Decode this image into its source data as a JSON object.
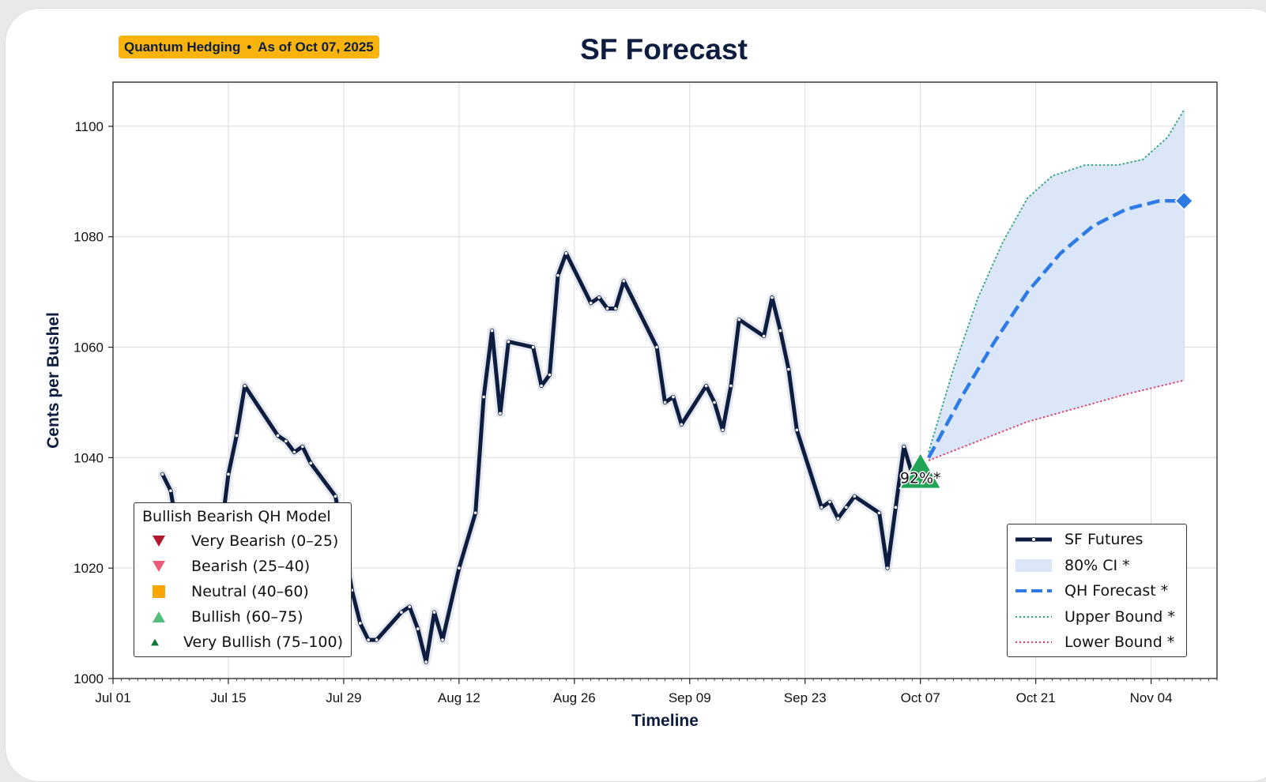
{
  "badge": {
    "source": "Quantum Hedging",
    "separator": "•",
    "asof": "As of Oct 07, 2025"
  },
  "chart_data": {
    "type": "line",
    "title": "SF Forecast",
    "xlabel": "Timeline",
    "ylabel": "Cents per Bushel",
    "ylim": [
      1000,
      1108
    ],
    "xlim": [
      "2025-07-01",
      "2025-11-12"
    ],
    "x_tick_labels": [
      "Jul 01",
      "Jul 15",
      "Jul 29",
      "Aug 12",
      "Aug 26",
      "Sep 09",
      "Sep 23",
      "Oct 07",
      "Oct 21",
      "Nov 04"
    ],
    "x_ticks": [
      "2025-07-01",
      "2025-07-15",
      "2025-07-29",
      "2025-08-12",
      "2025-08-26",
      "2025-09-09",
      "2025-09-23",
      "2025-10-07",
      "2025-10-21",
      "2025-11-04"
    ],
    "y_ticks": [
      1000,
      1020,
      1040,
      1060,
      1080,
      1100
    ],
    "grid": true,
    "colors": {
      "futures": "#0d1d3f",
      "forecast": "#2f7be6",
      "ci_fill": "#dbe6f8",
      "upper": "#2aa66a",
      "lower": "#e23a62",
      "signal": "#22a456"
    },
    "series": [
      {
        "name": "SF Futures",
        "points": [
          [
            "2025-07-07",
            1037
          ],
          [
            "2025-07-08",
            1034
          ],
          [
            "2025-07-09",
            1025
          ],
          [
            "2025-07-10",
            1030
          ],
          [
            "2025-07-11",
            1027
          ],
          [
            "2025-07-14",
            1025
          ],
          [
            "2025-07-15",
            1037
          ],
          [
            "2025-07-16",
            1044
          ],
          [
            "2025-07-17",
            1053
          ],
          [
            "2025-07-21",
            1044
          ],
          [
            "2025-07-22",
            1043
          ],
          [
            "2025-07-23",
            1041
          ],
          [
            "2025-07-24",
            1042
          ],
          [
            "2025-07-25",
            1039
          ],
          [
            "2025-07-28",
            1033
          ],
          [
            "2025-07-29",
            1025
          ],
          [
            "2025-07-30",
            1016
          ],
          [
            "2025-07-31",
            1010
          ],
          [
            "2025-08-01",
            1007
          ],
          [
            "2025-08-02",
            1007
          ],
          [
            "2025-08-05",
            1012
          ],
          [
            "2025-08-06",
            1013
          ],
          [
            "2025-08-07",
            1009
          ],
          [
            "2025-08-08",
            1003
          ],
          [
            "2025-08-09",
            1012
          ],
          [
            "2025-08-10",
            1007
          ],
          [
            "2025-08-12",
            1020
          ],
          [
            "2025-08-14",
            1030
          ],
          [
            "2025-08-15",
            1051
          ],
          [
            "2025-08-16",
            1063
          ],
          [
            "2025-08-17",
            1048
          ],
          [
            "2025-08-18",
            1061
          ],
          [
            "2025-08-21",
            1060
          ],
          [
            "2025-08-22",
            1053
          ],
          [
            "2025-08-23",
            1055
          ],
          [
            "2025-08-24",
            1073
          ],
          [
            "2025-08-25",
            1077
          ],
          [
            "2025-08-28",
            1068
          ],
          [
            "2025-08-29",
            1069
          ],
          [
            "2025-08-30",
            1067
          ],
          [
            "2025-08-31",
            1067
          ],
          [
            "2025-09-01",
            1072
          ],
          [
            "2025-09-05",
            1060
          ],
          [
            "2025-09-06",
            1050
          ],
          [
            "2025-09-07",
            1051
          ],
          [
            "2025-09-08",
            1046
          ],
          [
            "2025-09-11",
            1053
          ],
          [
            "2025-09-12",
            1050
          ],
          [
            "2025-09-13",
            1045
          ],
          [
            "2025-09-14",
            1053
          ],
          [
            "2025-09-15",
            1065
          ],
          [
            "2025-09-18",
            1062
          ],
          [
            "2025-09-19",
            1069
          ],
          [
            "2025-09-20",
            1063
          ],
          [
            "2025-09-21",
            1056
          ],
          [
            "2025-09-22",
            1045
          ],
          [
            "2025-09-25",
            1031
          ],
          [
            "2025-09-26",
            1032
          ],
          [
            "2025-09-27",
            1029
          ],
          [
            "2025-09-28",
            1031
          ],
          [
            "2025-09-29",
            1033
          ],
          [
            "2025-10-02",
            1030
          ],
          [
            "2025-10-03",
            1020
          ],
          [
            "2025-10-04",
            1031
          ],
          [
            "2025-10-05",
            1042
          ],
          [
            "2025-10-06",
            1037
          ],
          [
            "2025-10-07",
            1036
          ]
        ]
      },
      {
        "name": "QH Forecast *",
        "points": [
          [
            "2025-10-08",
            1040
          ],
          [
            "2025-10-12",
            1051
          ],
          [
            "2025-10-16",
            1061
          ],
          [
            "2025-10-20",
            1070
          ],
          [
            "2025-10-24",
            1077
          ],
          [
            "2025-10-28",
            1082
          ],
          [
            "2025-11-01",
            1085
          ],
          [
            "2025-11-05",
            1086.5
          ],
          [
            "2025-11-08",
            1086.5
          ]
        ]
      },
      {
        "name": "Upper Bound *",
        "points": [
          [
            "2025-10-08",
            1041
          ],
          [
            "2025-10-11",
            1056
          ],
          [
            "2025-10-14",
            1069
          ],
          [
            "2025-10-17",
            1079
          ],
          [
            "2025-10-20",
            1087
          ],
          [
            "2025-10-23",
            1091
          ],
          [
            "2025-10-27",
            1093
          ],
          [
            "2025-10-31",
            1093
          ],
          [
            "2025-11-03",
            1094
          ],
          [
            "2025-11-06",
            1098
          ],
          [
            "2025-11-08",
            1103
          ]
        ]
      },
      {
        "name": "Lower Bound *",
        "points": [
          [
            "2025-10-08",
            1039.5
          ],
          [
            "2025-10-14",
            1043
          ],
          [
            "2025-10-20",
            1046.5
          ],
          [
            "2025-10-26",
            1049
          ],
          [
            "2025-11-01",
            1051.5
          ],
          [
            "2025-11-08",
            1054
          ]
        ]
      }
    ],
    "ci_band": {
      "name": "80% CI *",
      "level": 80
    },
    "forecast_end_marker": {
      "date": "2025-11-08",
      "value": 1086.5
    },
    "signal": {
      "date": "2025-10-07",
      "value": 1038,
      "label": "92%*",
      "category": "Very Bullish (75–100)"
    },
    "legend_model": {
      "title": "Bullish Bearish QH Model",
      "placement": "lower-left",
      "entries": [
        {
          "label": "Very Bearish (0–25)",
          "marker": "triangle-down",
          "color": "#b01a2e"
        },
        {
          "label": "Bearish (25–40)",
          "marker": "triangle-down",
          "color": "#ee5b7a"
        },
        {
          "label": "Neutral (40–60)",
          "marker": "square",
          "color": "#ffa500"
        },
        {
          "label": "Bullish (60–75)",
          "marker": "triangle-up",
          "color": "#52c07a"
        },
        {
          "label": "Very Bullish (75–100)",
          "marker": "triangle-up",
          "color": "#0d7a3a"
        }
      ]
    },
    "legend_series": {
      "placement": "lower-right",
      "entries": [
        {
          "label": "SF Futures",
          "style": "solid-marker"
        },
        {
          "label": "80% CI *",
          "style": "fill"
        },
        {
          "label": "QH Forecast *",
          "style": "dashed"
        },
        {
          "label": "Upper Bound *",
          "style": "dotted-upper"
        },
        {
          "label": "Lower Bound *",
          "style": "dotted-lower"
        }
      ]
    }
  }
}
